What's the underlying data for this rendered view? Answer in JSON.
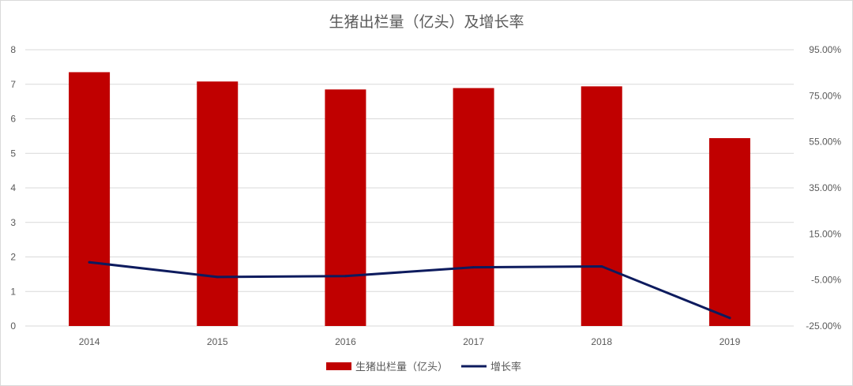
{
  "chart_data": {
    "type": "bar",
    "title": "生猪出栏量（亿头）及增长率",
    "categories": [
      "2014",
      "2015",
      "2016",
      "2017",
      "2018",
      "2019"
    ],
    "series": [
      {
        "name": "生猪出栏量（亿头）",
        "type": "bar",
        "axis": "left",
        "color": "#c00000",
        "values": [
          7.35,
          7.08,
          6.85,
          6.89,
          6.94,
          5.44
        ]
      },
      {
        "name": "增长率",
        "type": "line",
        "axis": "right",
        "color": "#0d1b5e",
        "values": [
          0.027,
          -0.037,
          -0.033,
          0.005,
          0.009,
          -0.215
        ]
      }
    ],
    "y_left": {
      "min": 0,
      "max": 8,
      "ticks": [
        0,
        1,
        2,
        3,
        4,
        5,
        6,
        7,
        8
      ],
      "tick_labels": [
        "0",
        "1",
        "2",
        "3",
        "4",
        "5",
        "6",
        "7",
        "8"
      ]
    },
    "y_right": {
      "min": -0.25,
      "max": 0.95,
      "ticks": [
        -0.25,
        -0.05,
        0.15,
        0.35,
        0.55,
        0.75,
        0.95
      ],
      "tick_labels": [
        "-25.00%",
        "-5.00%",
        "15.00%",
        "35.00%",
        "55.00%",
        "75.00%",
        "95.00%"
      ]
    },
    "grid": true,
    "legend": "bottom"
  }
}
